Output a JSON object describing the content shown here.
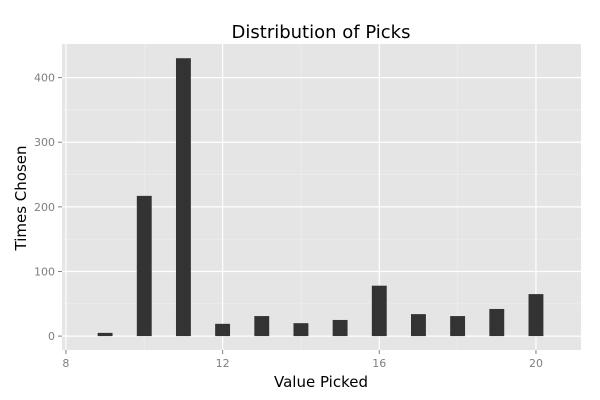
{
  "chart_data": {
    "type": "bar",
    "title": "Distribution of Picks",
    "xlabel": "Value Picked",
    "ylabel": "Times Chosen",
    "x": [
      9,
      10,
      11,
      12,
      13,
      14,
      15,
      16,
      17,
      18,
      19,
      20
    ],
    "values": [
      5,
      217,
      430,
      19,
      31,
      20,
      25,
      78,
      34,
      31,
      42,
      65
    ],
    "xlim": [
      7.9,
      21.15
    ],
    "ylim": [
      -21.5,
      452
    ],
    "xticks": [
      8,
      12,
      16,
      20
    ],
    "yticks": [
      0,
      100,
      200,
      300,
      400
    ],
    "xtick_labels": [
      "8",
      "12",
      "16",
      "20"
    ],
    "ytick_labels": [
      "0",
      "100",
      "200",
      "300",
      "400"
    ],
    "grid": true,
    "legend": "none",
    "colors": {
      "panel_background": "#e5e5e5",
      "grid_major": "#ffffff",
      "grid_minor": "#f0f0f0",
      "bar_fill": "#333333",
      "tick_text": "#7f7f7f"
    }
  }
}
